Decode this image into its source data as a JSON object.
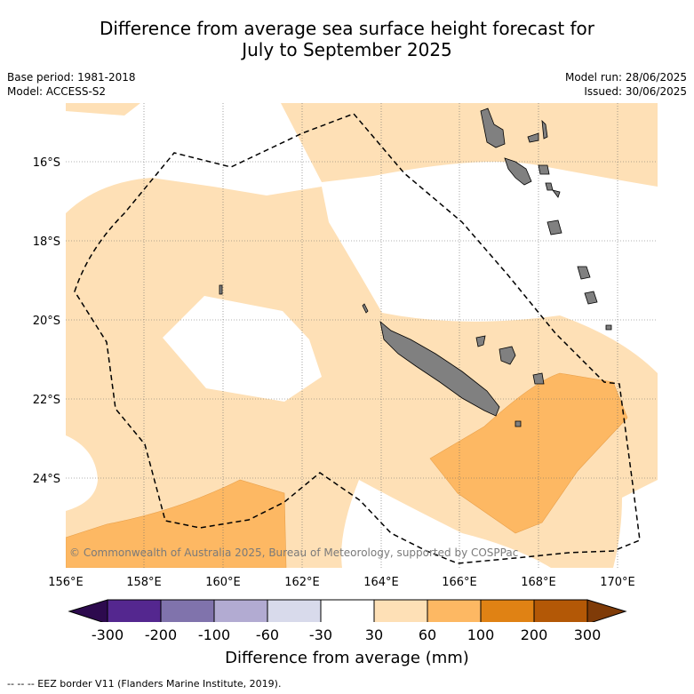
{
  "header": {
    "title_line1": "Difference from average sea surface height forecast for",
    "title_line2": "July to September 2025",
    "base_period": "Base period: 1981-2018",
    "model": "Model: ACCESS-S2",
    "model_run": "Model run: 28/06/2025",
    "issued": "Issued: 30/06/2025"
  },
  "map": {
    "copyright": "© Commonwealth of Australia 2025, Bureau of Meteorology, supported by COSPPac",
    "longitude_labels": [
      "156°E",
      "158°E",
      "160°E",
      "162°E",
      "164°E",
      "166°E",
      "168°E",
      "170°E"
    ],
    "latitude_labels": [
      "16°S",
      "18°S",
      "20°S",
      "22°S",
      "24°S"
    ],
    "land_color": "#808080",
    "eez_line": "dashed-black"
  },
  "colorbar": {
    "title": "Difference from average (mm)",
    "tick_labels": [
      "-300",
      "-200",
      "-100",
      "-60",
      "-30",
      "30",
      "60",
      "100",
      "200",
      "300"
    ],
    "colors": [
      "#2d0a4e",
      "#54278f",
      "#8073ac",
      "#b2abd2",
      "#d8daeb",
      "#ffffff",
      "#fee0b6",
      "#fdb863",
      "#e08214",
      "#b35806",
      "#7f3b08"
    ]
  },
  "footnote": "-- -- -- EEZ border V11 (Flanders Marine Institute, 2019)."
}
